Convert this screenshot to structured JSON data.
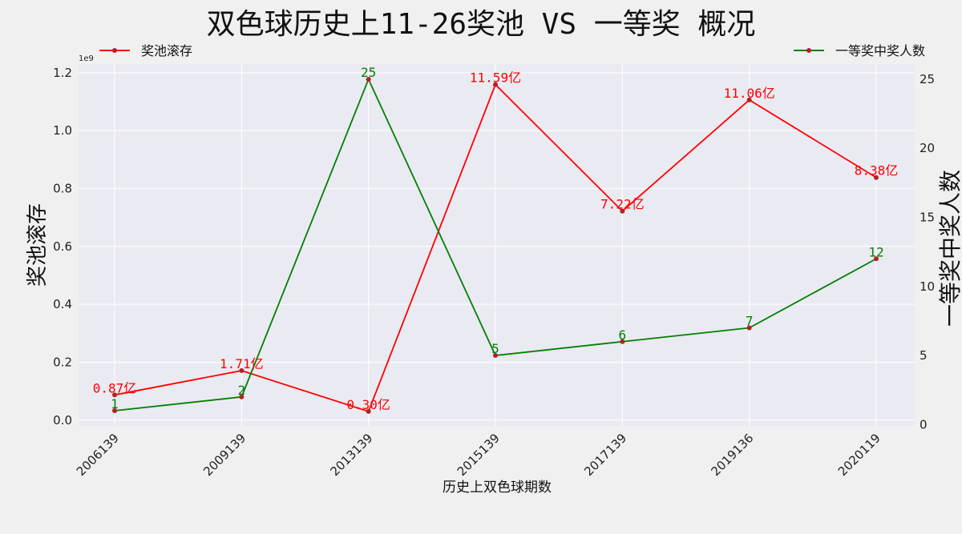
{
  "chart_data": {
    "type": "line",
    "title": "双色球历史上11-26奖池 VS 一等奖 概况",
    "xlabel": "历史上双色球期数",
    "ylabel_left": "奖池滚存",
    "ylabel_right": "一等奖中奖人数",
    "scale_note": "1e9",
    "categories": [
      "2006139",
      "2009139",
      "2013139",
      "2015139",
      "2017139",
      "2019136",
      "2020119"
    ],
    "ylim_left": [
      -0.02,
      1.23
    ],
    "yticks_left": [
      "0.0",
      "0.2",
      "0.4",
      "0.6",
      "0.8",
      "1.0",
      "1.2"
    ],
    "ylim_right": [
      -0.1,
      26.1
    ],
    "yticks_right": [
      "0",
      "5",
      "10",
      "15",
      "20",
      "25"
    ],
    "grid": true,
    "series": [
      {
        "name": "奖池滚存",
        "axis": "left",
        "color": "#ff0000",
        "values": [
          87000000,
          171000000,
          30000000,
          1159000000,
          722000000,
          1106000000,
          838000000
        ],
        "labels": [
          "0.87亿",
          "1.71亿",
          "0.30亿",
          "11.59亿",
          "7.22亿",
          "11.06亿",
          "8.38亿"
        ],
        "legend_position": "top-left"
      },
      {
        "name": "一等奖中奖人数",
        "axis": "right",
        "color": "#008000",
        "values": [
          1,
          2,
          25,
          5,
          6,
          7,
          12
        ],
        "labels": [
          "1",
          "2",
          "25",
          "5",
          "6",
          "7",
          "12"
        ],
        "legend_position": "top-right"
      }
    ],
    "marker_color": "#b22222"
  }
}
